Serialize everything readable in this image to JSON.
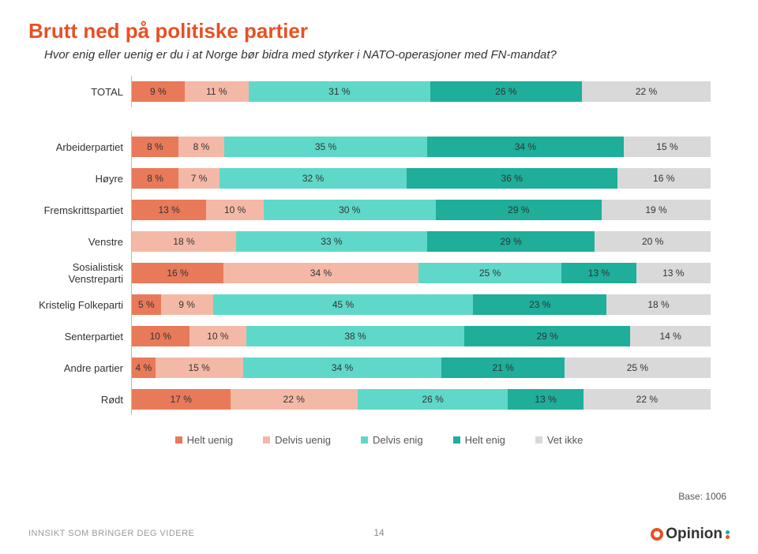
{
  "title": "Brutt ned på politiske partier",
  "subtitle": "Hvor enig eller uenig er du i at Norge bør bidra med styrker i NATO-operasjoner med FN-mandat?",
  "palette": {
    "helt_uenig": "#e87a5a",
    "delvis_uenig": "#f4b9a6",
    "delvis_enig": "#5fd8c9",
    "helt_enig": "#1eae9a",
    "vet_ikke": "#d9d9d9"
  },
  "categories": [
    {
      "key": "helt_uenig",
      "label": "Helt uenig"
    },
    {
      "key": "delvis_uenig",
      "label": "Delvis uenig"
    },
    {
      "key": "delvis_enig",
      "label": "Delvis enig"
    },
    {
      "key": "helt_enig",
      "label": "Helt enig"
    },
    {
      "key": "vet_ikke",
      "label": "Vet ikke"
    }
  ],
  "rows": [
    {
      "label": "TOTAL",
      "total": true,
      "values": [
        9,
        11,
        31,
        26,
        22
      ]
    },
    {
      "label": "Arbeiderpartiet",
      "values": [
        8,
        8,
        35,
        34,
        15
      ]
    },
    {
      "label": "Høyre",
      "values": [
        8,
        7,
        32,
        36,
        16
      ]
    },
    {
      "label": "Fremskrittspartiet",
      "values": [
        13,
        10,
        30,
        29,
        19
      ]
    },
    {
      "label": "Venstre",
      "values": [
        18,
        33,
        29,
        20
      ],
      "hide_first": true
    },
    {
      "label": "Sosialistisk Venstreparti",
      "values": [
        16,
        34,
        25,
        13,
        13
      ]
    },
    {
      "label": "Kristelig Folkeparti",
      "values": [
        5,
        9,
        45,
        23,
        18
      ]
    },
    {
      "label": "Senterpartiet",
      "values": [
        10,
        10,
        38,
        29,
        14
      ]
    },
    {
      "label": "Andre partier",
      "values": [
        4,
        15,
        34,
        21,
        25
      ]
    },
    {
      "label": "Rødt",
      "values": [
        17,
        22,
        26,
        13,
        22
      ]
    }
  ],
  "base_text": "Base: 1006",
  "footer_text": "INNSIKT SOM BRINGER DEG VIDERE",
  "page_number": "14",
  "logo_text": "Opinion",
  "logo_dot_colors": [
    "#1eae9a",
    "#e65124"
  ]
}
